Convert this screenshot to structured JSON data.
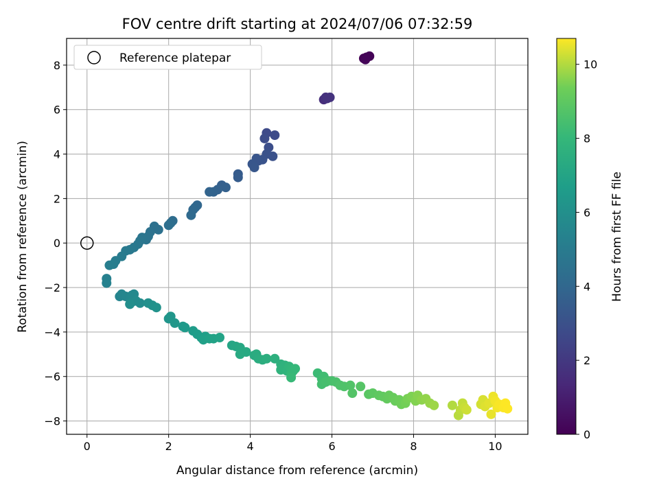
{
  "chart_data": {
    "type": "scatter",
    "title": "FOV centre drift starting at 2024/07/06 07:32:59",
    "xlabel": "Angular distance from reference (arcmin)",
    "ylabel": "Rotation from reference (arcmin)",
    "xlim": [
      -0.5,
      10.8
    ],
    "ylim": [
      -8.6,
      9.2
    ],
    "xticks": [
      0,
      2,
      4,
      6,
      8,
      10
    ],
    "yticks": [
      -8,
      -6,
      -4,
      -2,
      0,
      2,
      4,
      6,
      8
    ],
    "grid": true,
    "legend": {
      "position": "top-left",
      "entries": [
        {
          "label": "Reference platepar",
          "marker": "open-circle"
        }
      ]
    },
    "reference_point": {
      "x": 0,
      "y": 0
    },
    "colorbar": {
      "label": "Hours from first FF file",
      "min": 0,
      "max": 10.7,
      "ticks": [
        0,
        2,
        4,
        6,
        8,
        10
      ],
      "colormap": "viridis"
    },
    "series": [
      {
        "points": [
          {
            "x": 6.78,
            "y": 8.3,
            "h": 0.0
          },
          {
            "x": 6.85,
            "y": 8.35,
            "h": 0.05
          },
          {
            "x": 6.92,
            "y": 8.4,
            "h": 0.1
          },
          {
            "x": 6.82,
            "y": 8.25,
            "h": 0.15
          },
          {
            "x": 5.8,
            "y": 6.45,
            "h": 1.6
          },
          {
            "x": 5.85,
            "y": 6.55,
            "h": 1.7
          },
          {
            "x": 5.95,
            "y": 6.55,
            "h": 1.8
          },
          {
            "x": 5.88,
            "y": 6.5,
            "h": 1.75
          },
          {
            "x": 4.4,
            "y": 4.95,
            "h": 2.7
          },
          {
            "x": 4.6,
            "y": 4.85,
            "h": 2.75
          },
          {
            "x": 4.35,
            "y": 4.7,
            "h": 2.8
          },
          {
            "x": 4.45,
            "y": 4.3,
            "h": 2.9
          },
          {
            "x": 4.55,
            "y": 3.9,
            "h": 3.0
          },
          {
            "x": 4.4,
            "y": 4.0,
            "h": 3.05
          },
          {
            "x": 4.3,
            "y": 3.75,
            "h": 3.1
          },
          {
            "x": 4.2,
            "y": 3.7,
            "h": 3.15
          },
          {
            "x": 4.15,
            "y": 3.8,
            "h": 3.2
          },
          {
            "x": 4.05,
            "y": 3.55,
            "h": 3.25
          },
          {
            "x": 4.1,
            "y": 3.4,
            "h": 3.3
          },
          {
            "x": 3.7,
            "y": 3.1,
            "h": 3.45
          },
          {
            "x": 3.7,
            "y": 2.95,
            "h": 3.5
          },
          {
            "x": 3.3,
            "y": 2.6,
            "h": 3.65
          },
          {
            "x": 3.4,
            "y": 2.5,
            "h": 3.7
          },
          {
            "x": 3.2,
            "y": 2.4,
            "h": 3.75
          },
          {
            "x": 3.1,
            "y": 2.3,
            "h": 3.8
          },
          {
            "x": 3.0,
            "y": 2.3,
            "h": 3.85
          },
          {
            "x": 2.7,
            "y": 1.7,
            "h": 3.95
          },
          {
            "x": 2.65,
            "y": 1.6,
            "h": 4.0
          },
          {
            "x": 2.6,
            "y": 1.5,
            "h": 4.05
          },
          {
            "x": 2.55,
            "y": 1.25,
            "h": 4.1
          },
          {
            "x": 2.1,
            "y": 1.0,
            "h": 4.25
          },
          {
            "x": 2.05,
            "y": 0.9,
            "h": 4.3
          },
          {
            "x": 2.0,
            "y": 0.8,
            "h": 4.35
          },
          {
            "x": 1.75,
            "y": 0.6,
            "h": 4.45
          },
          {
            "x": 1.65,
            "y": 0.75,
            "h": 4.5
          },
          {
            "x": 1.55,
            "y": 0.5,
            "h": 4.55
          },
          {
            "x": 1.5,
            "y": 0.3,
            "h": 4.6
          },
          {
            "x": 1.45,
            "y": 0.15,
            "h": 4.65
          },
          {
            "x": 1.35,
            "y": 0.25,
            "h": 4.7
          },
          {
            "x": 1.3,
            "y": 0.1,
            "h": 4.75
          },
          {
            "x": 1.25,
            "y": -0.05,
            "h": 4.8
          },
          {
            "x": 1.15,
            "y": -0.2,
            "h": 4.85
          },
          {
            "x": 1.05,
            "y": -0.3,
            "h": 4.9
          },
          {
            "x": 0.95,
            "y": -0.35,
            "h": 4.95
          },
          {
            "x": 0.85,
            "y": -0.6,
            "h": 5.0
          },
          {
            "x": 0.7,
            "y": -0.8,
            "h": 5.05
          },
          {
            "x": 0.65,
            "y": -0.95,
            "h": 5.1
          },
          {
            "x": 0.55,
            "y": -1.0,
            "h": 5.15
          },
          {
            "x": 0.48,
            "y": -1.6,
            "h": 5.25
          },
          {
            "x": 0.48,
            "y": -1.8,
            "h": 5.3
          },
          {
            "x": 0.8,
            "y": -2.4,
            "h": 5.45
          },
          {
            "x": 0.85,
            "y": -2.3,
            "h": 5.5
          },
          {
            "x": 0.95,
            "y": -2.4,
            "h": 5.55
          },
          {
            "x": 1.05,
            "y": -2.5,
            "h": 5.6
          },
          {
            "x": 1.1,
            "y": -2.35,
            "h": 5.65
          },
          {
            "x": 1.15,
            "y": -2.3,
            "h": 5.7
          },
          {
            "x": 1.1,
            "y": -2.65,
            "h": 5.75
          },
          {
            "x": 1.2,
            "y": -2.6,
            "h": 5.8
          },
          {
            "x": 1.3,
            "y": -2.7,
            "h": 5.85
          },
          {
            "x": 1.05,
            "y": -2.75,
            "h": 5.9
          },
          {
            "x": 1.5,
            "y": -2.7,
            "h": 6.0
          },
          {
            "x": 1.6,
            "y": -2.8,
            "h": 6.05
          },
          {
            "x": 1.7,
            "y": -2.9,
            "h": 6.1
          },
          {
            "x": 2.0,
            "y": -3.4,
            "h": 6.25
          },
          {
            "x": 2.05,
            "y": -3.3,
            "h": 6.3
          },
          {
            "x": 2.15,
            "y": -3.6,
            "h": 6.35
          },
          {
            "x": 2.35,
            "y": -3.75,
            "h": 6.45
          },
          {
            "x": 2.4,
            "y": -3.8,
            "h": 6.5
          },
          {
            "x": 2.6,
            "y": -3.95,
            "h": 6.6
          },
          {
            "x": 2.7,
            "y": -4.1,
            "h": 6.65
          },
          {
            "x": 2.8,
            "y": -4.25,
            "h": 6.7
          },
          {
            "x": 2.9,
            "y": -4.2,
            "h": 6.75
          },
          {
            "x": 2.85,
            "y": -4.35,
            "h": 6.8
          },
          {
            "x": 3.0,
            "y": -4.3,
            "h": 6.85
          },
          {
            "x": 3.1,
            "y": -4.3,
            "h": 6.9
          },
          {
            "x": 3.25,
            "y": -4.25,
            "h": 6.95
          },
          {
            "x": 3.55,
            "y": -4.6,
            "h": 7.05
          },
          {
            "x": 3.65,
            "y": -4.65,
            "h": 7.1
          },
          {
            "x": 3.75,
            "y": -4.7,
            "h": 7.15
          },
          {
            "x": 3.8,
            "y": -4.9,
            "h": 7.2
          },
          {
            "x": 3.9,
            "y": -4.9,
            "h": 7.25
          },
          {
            "x": 3.75,
            "y": -5.0,
            "h": 7.3
          },
          {
            "x": 4.1,
            "y": -5.05,
            "h": 7.35
          },
          {
            "x": 4.15,
            "y": -5.0,
            "h": 7.4
          },
          {
            "x": 4.2,
            "y": -5.2,
            "h": 7.45
          },
          {
            "x": 4.3,
            "y": -5.25,
            "h": 7.5
          },
          {
            "x": 4.4,
            "y": -5.2,
            "h": 7.55
          },
          {
            "x": 4.6,
            "y": -5.2,
            "h": 7.6
          },
          {
            "x": 4.75,
            "y": -5.45,
            "h": 7.65
          },
          {
            "x": 4.85,
            "y": -5.5,
            "h": 7.7
          },
          {
            "x": 4.75,
            "y": -5.7,
            "h": 7.75
          },
          {
            "x": 4.9,
            "y": -5.75,
            "h": 7.8
          },
          {
            "x": 4.95,
            "y": -5.55,
            "h": 7.85
          },
          {
            "x": 5.0,
            "y": -5.65,
            "h": 7.9
          },
          {
            "x": 5.05,
            "y": -5.75,
            "h": 7.95
          },
          {
            "x": 5.1,
            "y": -5.65,
            "h": 8.0
          },
          {
            "x": 5.0,
            "y": -5.9,
            "h": 8.05
          },
          {
            "x": 5.0,
            "y": -6.05,
            "h": 8.1
          },
          {
            "x": 5.65,
            "y": -5.85,
            "h": 8.2
          },
          {
            "x": 5.75,
            "y": -6.1,
            "h": 8.25
          },
          {
            "x": 5.8,
            "y": -6.0,
            "h": 8.3
          },
          {
            "x": 5.9,
            "y": -6.2,
            "h": 8.35
          },
          {
            "x": 5.75,
            "y": -6.35,
            "h": 8.4
          },
          {
            "x": 5.85,
            "y": -6.25,
            "h": 8.45
          },
          {
            "x": 6.0,
            "y": -6.2,
            "h": 8.5
          },
          {
            "x": 6.1,
            "y": -6.25,
            "h": 8.55
          },
          {
            "x": 6.2,
            "y": -6.4,
            "h": 8.6
          },
          {
            "x": 6.3,
            "y": -6.45,
            "h": 8.65
          },
          {
            "x": 6.45,
            "y": -6.4,
            "h": 8.7
          },
          {
            "x": 6.5,
            "y": -6.75,
            "h": 8.75
          },
          {
            "x": 6.7,
            "y": -6.45,
            "h": 8.8
          },
          {
            "x": 6.9,
            "y": -6.8,
            "h": 8.9
          },
          {
            "x": 7.0,
            "y": -6.75,
            "h": 8.95
          },
          {
            "x": 7.15,
            "y": -6.85,
            "h": 9.0
          },
          {
            "x": 7.25,
            "y": -6.9,
            "h": 9.05
          },
          {
            "x": 7.35,
            "y": -7.0,
            "h": 9.1
          },
          {
            "x": 7.4,
            "y": -6.85,
            "h": 9.15
          },
          {
            "x": 7.5,
            "y": -6.95,
            "h": 9.2
          },
          {
            "x": 7.55,
            "y": -7.1,
            "h": 9.25
          },
          {
            "x": 7.65,
            "y": -7.05,
            "h": 9.3
          },
          {
            "x": 7.7,
            "y": -7.25,
            "h": 9.35
          },
          {
            "x": 7.8,
            "y": -7.2,
            "h": 9.4
          },
          {
            "x": 7.85,
            "y": -7.0,
            "h": 9.45
          },
          {
            "x": 7.95,
            "y": -6.9,
            "h": 9.5
          },
          {
            "x": 8.05,
            "y": -7.1,
            "h": 9.55
          },
          {
            "x": 8.1,
            "y": -6.85,
            "h": 9.6
          },
          {
            "x": 8.2,
            "y": -7.05,
            "h": 9.65
          },
          {
            "x": 8.3,
            "y": -7.0,
            "h": 9.7
          },
          {
            "x": 8.4,
            "y": -7.2,
            "h": 9.75
          },
          {
            "x": 8.5,
            "y": -7.3,
            "h": 9.8
          },
          {
            "x": 8.95,
            "y": -7.3,
            "h": 10.0
          },
          {
            "x": 9.1,
            "y": -7.75,
            "h": 10.05
          },
          {
            "x": 9.15,
            "y": -7.5,
            "h": 10.1
          },
          {
            "x": 9.2,
            "y": -7.2,
            "h": 10.15
          },
          {
            "x": 9.25,
            "y": -7.4,
            "h": 10.2
          },
          {
            "x": 9.3,
            "y": -7.5,
            "h": 10.25
          },
          {
            "x": 9.65,
            "y": -7.25,
            "h": 10.3
          },
          {
            "x": 9.7,
            "y": -7.05,
            "h": 10.35
          },
          {
            "x": 9.75,
            "y": -7.35,
            "h": 10.4
          },
          {
            "x": 9.85,
            "y": -7.2,
            "h": 10.45
          },
          {
            "x": 9.9,
            "y": -7.7,
            "h": 10.5
          },
          {
            "x": 9.95,
            "y": -6.9,
            "h": 10.55
          },
          {
            "x": 10.0,
            "y": -7.1,
            "h": 10.6
          },
          {
            "x": 10.05,
            "y": -7.4,
            "h": 10.62
          },
          {
            "x": 10.1,
            "y": -7.25,
            "h": 10.65
          },
          {
            "x": 10.2,
            "y": -7.4,
            "h": 10.68
          },
          {
            "x": 10.25,
            "y": -7.2,
            "h": 10.7
          },
          {
            "x": 10.3,
            "y": -7.45,
            "h": 10.7
          }
        ]
      }
    ]
  }
}
